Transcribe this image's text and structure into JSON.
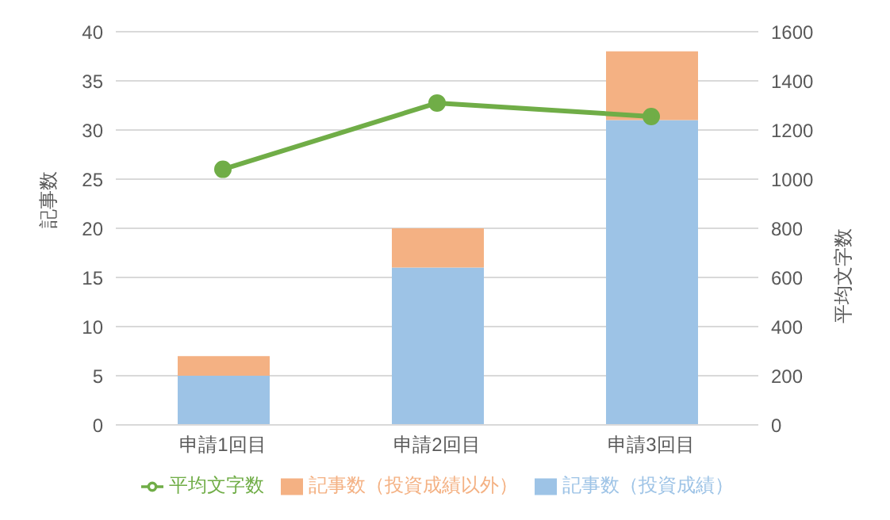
{
  "chart_data": {
    "type": "bar",
    "categories": [
      "申請1回目",
      "申請2回目",
      "申請3回目"
    ],
    "stacked": true,
    "series": [
      {
        "name": "記事数（投資成績）",
        "color": "#9dc3e6",
        "values": [
          5,
          16,
          31
        ]
      },
      {
        "name": "記事数（投資成績以外）",
        "color": "#f4b183",
        "values": [
          2,
          4,
          7
        ]
      },
      {
        "name": "平均文字数",
        "type": "line",
        "axis": "y2",
        "color": "#70ad47",
        "values": [
          1040,
          1310,
          1255
        ],
        "marker": "circle"
      }
    ],
    "ylabel": "記事数",
    "y2label": "平均文字数",
    "ylim": [
      0,
      40
    ],
    "yticks": [
      0,
      5,
      10,
      15,
      20,
      25,
      30,
      35,
      40
    ],
    "y2lim": [
      0,
      1600
    ],
    "y2ticks": [
      0,
      200,
      400,
      600,
      800,
      1000,
      1200,
      1400,
      1600
    ],
    "grid": "y",
    "legend": "bottom"
  }
}
